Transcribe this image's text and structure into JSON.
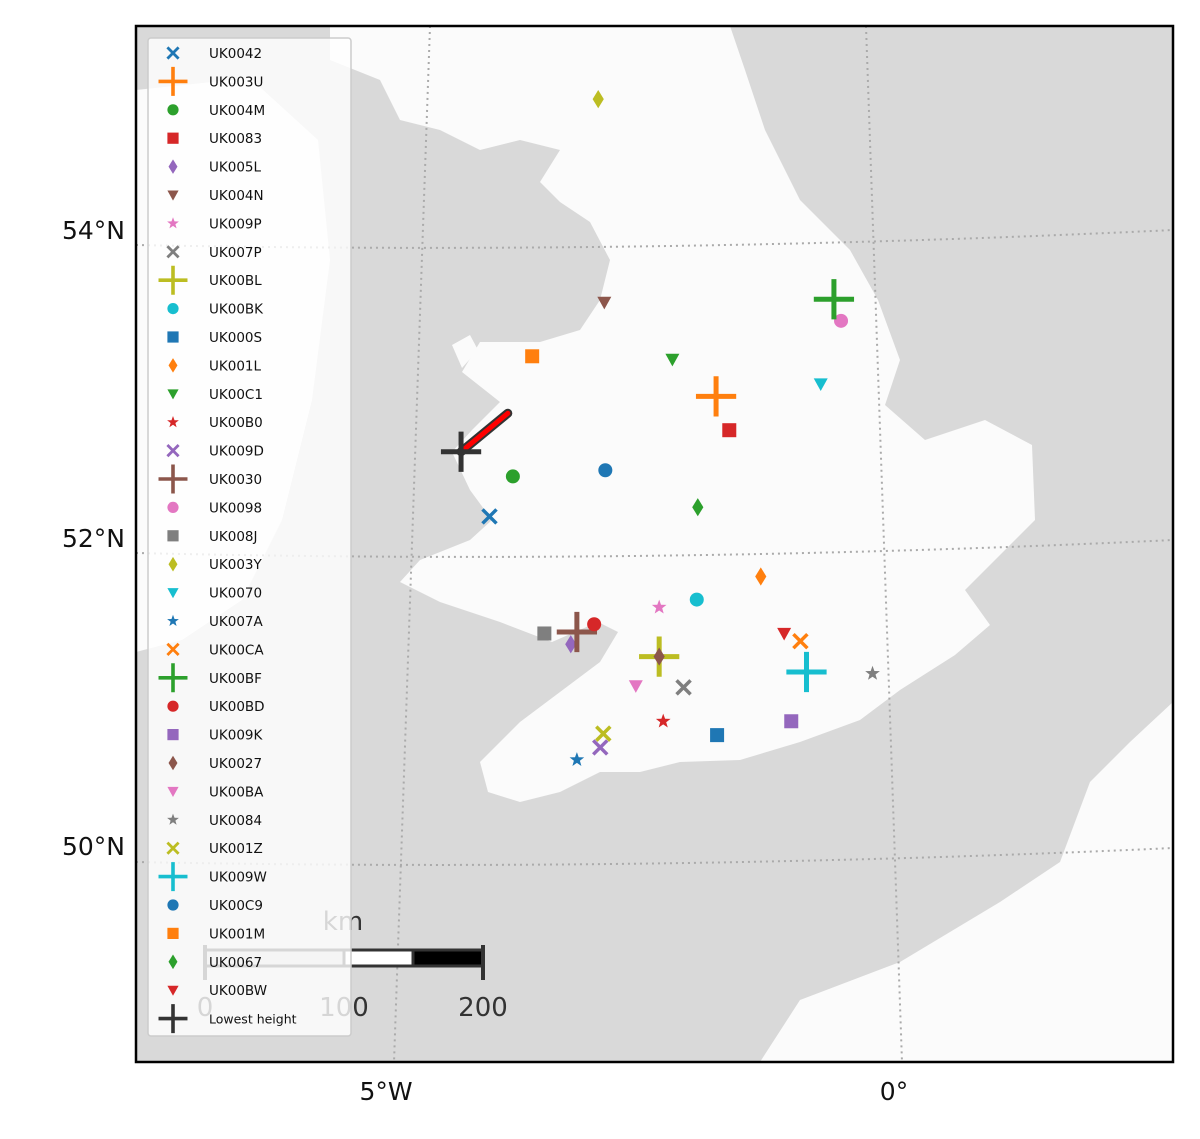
{
  "chart_data": {
    "type": "scatter",
    "projection": "map",
    "xlabel": "",
    "ylabel": "",
    "lon_ticks": [
      {
        "value": -5,
        "label": "5°W"
      },
      {
        "value": 0,
        "label": "0°"
      }
    ],
    "lat_ticks": [
      {
        "value": 54,
        "label": "54°N"
      },
      {
        "value": 52,
        "label": "52°N"
      },
      {
        "value": 50,
        "label": "50°N"
      }
    ],
    "legend_position": "upper-left",
    "scale_bar": {
      "unit": "km",
      "labels": [
        "0",
        "100",
        "200"
      ]
    },
    "series": [
      {
        "name": "UK0042",
        "shape": "x",
        "color": "#1f77b4",
        "lon": -4.06,
        "lat": 52.14
      },
      {
        "name": "UK003U",
        "shape": "plus",
        "color": "#ff7f0e",
        "lon": -1.83,
        "lat": 52.92
      },
      {
        "name": "UK004M",
        "shape": "circle",
        "color": "#2ca02c",
        "lon": -3.83,
        "lat": 52.4
      },
      {
        "name": "UK0083",
        "shape": "square",
        "color": "#d62728",
        "lon": -1.7,
        "lat": 52.7
      },
      {
        "name": "UK005L",
        "shape": "diamond",
        "color": "#9467bd",
        "lon": -3.26,
        "lat": 51.31
      },
      {
        "name": "UK004N",
        "shape": "tri",
        "color": "#8c564b",
        "lon": -2.93,
        "lat": 53.53
      },
      {
        "name": "UK009P",
        "shape": "star",
        "color": "#e377c2",
        "lon": -2.39,
        "lat": 51.55
      },
      {
        "name": "UK007P",
        "shape": "x",
        "color": "#7f7f7f",
        "lon": -2.15,
        "lat": 51.03
      },
      {
        "name": "UK00BL",
        "shape": "plus",
        "color": "#bcbd22",
        "lon": -2.39,
        "lat": 51.23
      },
      {
        "name": "UK00BK",
        "shape": "circle",
        "color": "#17becf",
        "lon": -2.02,
        "lat": 51.6
      },
      {
        "name": "UK000S",
        "shape": "square",
        "color": "#1f77b4",
        "lon": -1.82,
        "lat": 50.72
      },
      {
        "name": "UK001L",
        "shape": "diamond",
        "color": "#ff7f0e",
        "lon": -1.39,
        "lat": 51.75
      },
      {
        "name": "UK00C1",
        "shape": "tri",
        "color": "#2ca02c",
        "lon": -2.26,
        "lat": 53.16
      },
      {
        "name": "UK00B0",
        "shape": "star",
        "color": "#d62728",
        "lon": -2.35,
        "lat": 50.81
      },
      {
        "name": "UK009D",
        "shape": "x",
        "color": "#9467bd",
        "lon": -2.97,
        "lat": 50.64
      },
      {
        "name": "UK0030",
        "shape": "plus",
        "color": "#8c564b",
        "lon": -3.2,
        "lat": 51.39
      },
      {
        "name": "UK0098",
        "shape": "circle",
        "color": "#e377c2",
        "lon": -0.6,
        "lat": 53.41
      },
      {
        "name": "UK008J",
        "shape": "square",
        "color": "#7f7f7f",
        "lon": -3.52,
        "lat": 51.38
      },
      {
        "name": "UK003Y",
        "shape": "diamond",
        "color": "#bcbd22",
        "lon": -2.99,
        "lat": 54.85
      },
      {
        "name": "UK0070",
        "shape": "tri",
        "color": "#17becf",
        "lon": -0.8,
        "lat": 53.0
      },
      {
        "name": "UK007A",
        "shape": "star",
        "color": "#1f77b4",
        "lon": -3.2,
        "lat": 50.56
      },
      {
        "name": "UK00CA",
        "shape": "x",
        "color": "#ff7f0e",
        "lon": -1.0,
        "lat": 51.33
      },
      {
        "name": "UK00BF",
        "shape": "plus",
        "color": "#2ca02c",
        "lon": -0.67,
        "lat": 53.55
      },
      {
        "name": "UK00BD",
        "shape": "circle",
        "color": "#d62728",
        "lon": -3.03,
        "lat": 51.44
      },
      {
        "name": "UK009K",
        "shape": "square",
        "color": "#9467bd",
        "lon": -1.09,
        "lat": 50.81
      },
      {
        "name": "UK0027",
        "shape": "diamond",
        "color": "#8c564b",
        "lon": -2.39,
        "lat": 51.23
      },
      {
        "name": "UK00BA",
        "shape": "tri",
        "color": "#e377c2",
        "lon": -2.62,
        "lat": 51.04
      },
      {
        "name": "UK0084",
        "shape": "star",
        "color": "#7f7f7f",
        "lon": -0.29,
        "lat": 51.12
      },
      {
        "name": "UK001Z",
        "shape": "x",
        "color": "#bcbd22",
        "lon": -2.94,
        "lat": 50.73
      },
      {
        "name": "UK009W",
        "shape": "plus",
        "color": "#17becf",
        "lon": -0.94,
        "lat": 51.13
      },
      {
        "name": "UK00C9",
        "shape": "circle",
        "color": "#1f77b4",
        "lon": -2.92,
        "lat": 52.44
      },
      {
        "name": "UK001M",
        "shape": "square",
        "color": "#ff7f0e",
        "lon": -3.64,
        "lat": 53.18
      },
      {
        "name": "UK0067",
        "shape": "diamond",
        "color": "#2ca02c",
        "lon": -2.01,
        "lat": 52.2
      },
      {
        "name": "UK00BW",
        "shape": "tri",
        "color": "#d62728",
        "lon": -1.16,
        "lat": 51.38
      },
      {
        "name": "Lowest height",
        "shape": "plus",
        "color": "#333333",
        "lon": -4.34,
        "lat": 52.56
      }
    ],
    "track": {
      "color": "#ff0000",
      "from": {
        "lon": -4.34,
        "lat": 52.56
      },
      "to": {
        "lon": -3.88,
        "lat": 52.81
      }
    }
  }
}
